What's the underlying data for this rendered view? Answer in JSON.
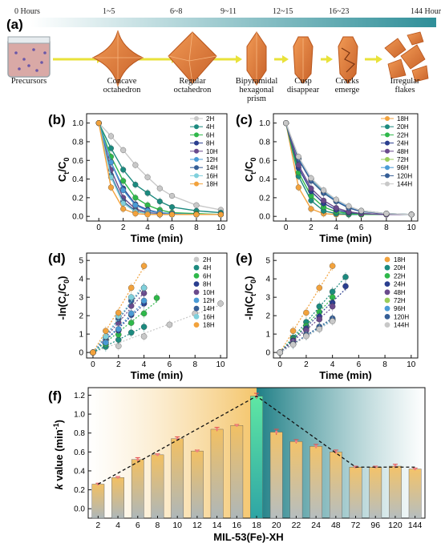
{
  "figure": {
    "panel_a": {
      "label": "(a)",
      "timeline": [
        "0 Hours",
        "1~5",
        "6~8",
        "9~11",
        "12~15",
        "16~23",
        "144 Hours"
      ],
      "stages": [
        {
          "name": "Precursors",
          "shape": "beaker-icon"
        },
        {
          "name": "Concave\noctahedron",
          "shape": "concave-octahedron-icon"
        },
        {
          "name": "Regular\noctahedron",
          "shape": "octahedron-icon"
        },
        {
          "name": "Bipyramidal\nhexagonal\nprism",
          "shape": "bipyramid-prism-icon"
        },
        {
          "name": "Cusp\ndisappear",
          "shape": "cusp-prism-icon"
        },
        {
          "name": "Cracks\nemerge",
          "shape": "cracked-prism-icon"
        },
        {
          "name": "Irregular\nflakes",
          "shape": "flakes-icon"
        }
      ],
      "colors": {
        "crystal": "#e5803e",
        "crystal_dark": "#b9561d",
        "arrow": "#e9e23a",
        "bar_start": "#ffffff",
        "bar_end": "#2f8f99"
      }
    },
    "panels_line": [
      {
        "label": "(b)",
        "xlabel": "Time (min)",
        "ylabel": "Ct/C0"
      },
      {
        "label": "(c)",
        "xlabel": "Time (min)",
        "ylabel": "Ct/C0"
      }
    ],
    "panels_ln": [
      {
        "label": "(d)",
        "xlabel": "Time (min)",
        "ylabel": "-ln(Ct/C0)"
      },
      {
        "label": "(e)",
        "xlabel": "Time (min)",
        "ylabel": "-ln(Ct/C0)"
      }
    ],
    "panel_f": {
      "label": "(f)",
      "xlabel": "MIL-53(Fe)-XH",
      "ylabel": "k value (min-1)"
    }
  },
  "chart_data": [
    {
      "type": "line",
      "panel": "b",
      "xlabel": "Time (min)",
      "ylabel": "Ct/C0",
      "xlim": [
        -1,
        10.5
      ],
      "ylim": [
        -0.05,
        1.1
      ],
      "xticks": [
        0,
        2,
        4,
        6,
        8,
        10
      ],
      "yticks": [
        0.0,
        0.2,
        0.4,
        0.6,
        0.8,
        1.0
      ],
      "grid": false,
      "legend": "top-right",
      "x": [
        0,
        1,
        2,
        3,
        4,
        5,
        6,
        8,
        10
      ],
      "series": [
        {
          "name": "2H",
          "color": "#c8c8c8",
          "values": [
            1.0,
            0.86,
            0.71,
            0.55,
            0.42,
            0.3,
            0.22,
            0.12,
            0.07
          ]
        },
        {
          "name": "4H",
          "color": "#1c8a7f",
          "values": [
            1.0,
            0.73,
            0.5,
            0.34,
            0.25,
            0.16,
            0.1,
            0.06,
            0.04
          ]
        },
        {
          "name": "6H",
          "color": "#2fb84a",
          "values": [
            1.0,
            0.64,
            0.38,
            0.2,
            0.12,
            0.07,
            0.04,
            0.03,
            0.02
          ]
        },
        {
          "name": "8H",
          "color": "#2a3e8f",
          "values": [
            1.0,
            0.58,
            0.3,
            0.13,
            0.07,
            0.04,
            0.03,
            0.02,
            0.02
          ]
        },
        {
          "name": "10H",
          "color": "#6a4a8c",
          "values": [
            1.0,
            0.5,
            0.2,
            0.08,
            0.04,
            0.03,
            0.02,
            0.02,
            0.02
          ]
        },
        {
          "name": "12H",
          "color": "#4a9bd6",
          "values": [
            1.0,
            0.58,
            0.28,
            0.12,
            0.06,
            0.04,
            0.03,
            0.02,
            0.02
          ]
        },
        {
          "name": "14H",
          "color": "#355e96",
          "values": [
            1.0,
            0.44,
            0.16,
            0.06,
            0.03,
            0.02,
            0.02,
            0.02,
            0.02
          ]
        },
        {
          "name": "16H",
          "color": "#7fd0dc",
          "values": [
            1.0,
            0.42,
            0.14,
            0.05,
            0.03,
            0.02,
            0.02,
            0.02,
            0.02
          ]
        },
        {
          "name": "18H",
          "color": "#f2a23c",
          "values": [
            1.0,
            0.31,
            0.08,
            0.03,
            0.02,
            0.02,
            0.02,
            0.02,
            0.02
          ]
        }
      ]
    },
    {
      "type": "line",
      "panel": "c",
      "xlabel": "Time (min)",
      "ylabel": "Ct/C0",
      "xlim": [
        -1,
        10.5
      ],
      "ylim": [
        -0.05,
        1.1
      ],
      "xticks": [
        0,
        2,
        4,
        6,
        8,
        10
      ],
      "yticks": [
        0.0,
        0.2,
        0.4,
        0.6,
        0.8,
        1.0
      ],
      "grid": false,
      "legend": "top-right",
      "x": [
        0,
        1,
        2,
        3,
        4,
        5,
        6,
        8,
        10
      ],
      "series": [
        {
          "name": "18H",
          "color": "#f2a23c",
          "values": [
            1.0,
            0.31,
            0.08,
            0.03,
            0.02,
            0.02,
            0.02,
            0.02,
            0.02
          ]
        },
        {
          "name": "20H",
          "color": "#1c8a7f",
          "values": [
            1.0,
            0.43,
            0.17,
            0.06,
            0.03,
            0.02,
            0.02,
            0.02,
            0.02
          ]
        },
        {
          "name": "22H",
          "color": "#2fb84a",
          "values": [
            1.0,
            0.47,
            0.22,
            0.1,
            0.05,
            0.03,
            0.02,
            0.02,
            0.02
          ]
        },
        {
          "name": "24H",
          "color": "#2a3e8f",
          "values": [
            1.0,
            0.52,
            0.27,
            0.14,
            0.07,
            0.04,
            0.03,
            0.02,
            0.02
          ]
        },
        {
          "name": "48H",
          "color": "#6a4a8c",
          "values": [
            1.0,
            0.55,
            0.3,
            0.17,
            0.09,
            0.05,
            0.03,
            0.02,
            0.02
          ]
        },
        {
          "name": "72H",
          "color": "#9acd5a",
          "values": [
            1.0,
            0.62,
            0.4,
            0.26,
            0.17,
            0.1,
            0.06,
            0.03,
            0.02
          ]
        },
        {
          "name": "96H",
          "color": "#4a9bd6",
          "values": [
            1.0,
            0.62,
            0.4,
            0.27,
            0.17,
            0.1,
            0.06,
            0.03,
            0.02
          ]
        },
        {
          "name": "120H",
          "color": "#355e96",
          "values": [
            1.0,
            0.61,
            0.38,
            0.25,
            0.16,
            0.09,
            0.05,
            0.03,
            0.02
          ]
        },
        {
          "name": "144H",
          "color": "#c8c8c8",
          "values": [
            1.0,
            0.64,
            0.41,
            0.28,
            0.18,
            0.11,
            0.06,
            0.03,
            0.02
          ]
        }
      ]
    },
    {
      "type": "scatter",
      "panel": "d",
      "xlabel": "Time (min)",
      "ylabel": "-ln(Ct/C0)",
      "xlim": [
        -0.5,
        10.5
      ],
      "ylim": [
        -0.3,
        5.4
      ],
      "xticks": [
        0,
        2,
        4,
        6,
        8,
        10
      ],
      "yticks": [
        0,
        1,
        2,
        3,
        4,
        5
      ],
      "grid": false,
      "legend": "top-right",
      "series": [
        {
          "name": "2H",
          "color": "#c8c8c8",
          "x": [
            0,
            2,
            4,
            6,
            8,
            10
          ],
          "values": [
            0,
            0.35,
            0.87,
            1.51,
            2.12,
            2.66
          ]
        },
        {
          "name": "4H",
          "color": "#1c8a7f",
          "x": [
            0,
            1,
            2,
            3,
            4
          ],
          "values": [
            0,
            0.31,
            0.69,
            1.08,
            1.39
          ]
        },
        {
          "name": "6H",
          "color": "#2fb84a",
          "x": [
            0,
            1,
            2,
            3,
            4,
            5
          ],
          "values": [
            0,
            0.45,
            0.97,
            1.61,
            2.12,
            2.96
          ]
        },
        {
          "name": "8H",
          "color": "#2a3e8f",
          "x": [
            0,
            1,
            2,
            3,
            4
          ],
          "values": [
            0,
            0.54,
            1.2,
            2.04,
            2.66
          ]
        },
        {
          "name": "10H",
          "color": "#6a4a8c",
          "x": [
            0,
            1,
            2,
            3,
            4
          ],
          "values": [
            0,
            0.69,
            1.61,
            2.53,
            3.22
          ]
        },
        {
          "name": "12H",
          "color": "#4a9bd6",
          "x": [
            0,
            1,
            2,
            3,
            4
          ],
          "values": [
            0,
            0.54,
            1.27,
            2.12,
            2.81
          ]
        },
        {
          "name": "14H",
          "color": "#355e96",
          "x": [
            0,
            1,
            2,
            3,
            4
          ],
          "values": [
            0,
            0.82,
            1.83,
            2.81,
            3.51
          ]
        },
        {
          "name": "16H",
          "color": "#7fd0dc",
          "x": [
            0,
            1,
            2,
            3,
            4
          ],
          "values": [
            0,
            0.87,
            1.97,
            3.0,
            3.51
          ]
        },
        {
          "name": "18H",
          "color": "#f2a23c",
          "x": [
            0,
            1,
            2,
            3,
            4
          ],
          "values": [
            0,
            1.17,
            2.16,
            3.51,
            4.7
          ]
        }
      ]
    },
    {
      "type": "scatter",
      "panel": "e",
      "xlabel": "Time (min)",
      "ylabel": "-ln(Ct/C0)",
      "xlim": [
        -0.5,
        10.5
      ],
      "ylim": [
        -0.3,
        5.4
      ],
      "xticks": [
        0,
        2,
        4,
        6,
        8,
        10
      ],
      "yticks": [
        0,
        1,
        2,
        3,
        4,
        5
      ],
      "grid": false,
      "legend": "top-right",
      "series": [
        {
          "name": "18H",
          "color": "#f2a23c",
          "x": [
            0,
            1,
            2,
            3,
            4
          ],
          "values": [
            0,
            1.17,
            2.16,
            3.51,
            4.7
          ]
        },
        {
          "name": "20H",
          "color": "#1c8a7f",
          "x": [
            0,
            1,
            2,
            3,
            4,
            5
          ],
          "values": [
            0,
            0.8,
            1.65,
            2.5,
            3.3,
            4.1
          ]
        },
        {
          "name": "22H",
          "color": "#2fb84a",
          "x": [
            0,
            1,
            2,
            3,
            4
          ],
          "values": [
            0,
            0.72,
            1.45,
            2.2,
            3.0
          ]
        },
        {
          "name": "24H",
          "color": "#2a3e8f",
          "x": [
            0,
            1,
            2,
            3,
            4,
            5
          ],
          "values": [
            0,
            0.65,
            1.3,
            1.95,
            2.7,
            3.6
          ]
        },
        {
          "name": "48H",
          "color": "#6a4a8c",
          "x": [
            0,
            1,
            2,
            3,
            4
          ],
          "values": [
            0,
            0.6,
            1.2,
            1.8,
            2.5
          ]
        },
        {
          "name": "72H",
          "color": "#9acd5a",
          "x": [
            0,
            1,
            2,
            3,
            4
          ],
          "values": [
            0,
            0.45,
            0.92,
            1.35,
            1.77
          ]
        },
        {
          "name": "96H",
          "color": "#4a9bd6",
          "x": [
            0,
            1,
            2,
            3,
            4
          ],
          "values": [
            0,
            0.45,
            0.92,
            1.32,
            1.77
          ]
        },
        {
          "name": "120H",
          "color": "#355e96",
          "x": [
            0,
            1,
            2,
            3,
            4
          ],
          "values": [
            0,
            0.47,
            0.97,
            1.4,
            1.85
          ]
        },
        {
          "name": "144H",
          "color": "#c8c8c8",
          "x": [
            0,
            1,
            2,
            3,
            4
          ],
          "values": [
            0,
            0.43,
            0.89,
            1.27,
            1.7
          ]
        }
      ]
    },
    {
      "type": "bar",
      "panel": "f",
      "xlabel": "MIL-53(Fe)-XH",
      "ylabel": "k value (min-1)",
      "ylim": [
        -0.1,
        1.28
      ],
      "yticks": [
        0.0,
        0.2,
        0.4,
        0.6,
        0.8,
        1.0,
        1.2
      ],
      "grid": false,
      "categories": [
        "2",
        "4",
        "6",
        "8",
        "10",
        "12",
        "14",
        "16",
        "18",
        "20",
        "22",
        "24",
        "48",
        "72",
        "96",
        "120",
        "144"
      ],
      "values": [
        0.26,
        0.33,
        0.52,
        0.57,
        0.74,
        0.61,
        0.84,
        0.88,
        1.19,
        0.81,
        0.71,
        0.66,
        0.6,
        0.44,
        0.44,
        0.45,
        0.42
      ],
      "errors": [
        0.01,
        0.01,
        0.02,
        0.01,
        0.02,
        0.01,
        0.02,
        0.01,
        0.03,
        0.03,
        0.02,
        0.02,
        0.02,
        0.01,
        0.01,
        0.02,
        0.01
      ],
      "trend": [
        [
          0,
          0.26
        ],
        [
          8,
          1.19
        ],
        [
          13,
          0.44
        ],
        [
          16,
          0.44
        ]
      ],
      "colors": {
        "warm": "#f4c56b",
        "cool": "#1f7f86",
        "peak": "#5fe7a4",
        "error": "#e34c4c"
      }
    }
  ]
}
